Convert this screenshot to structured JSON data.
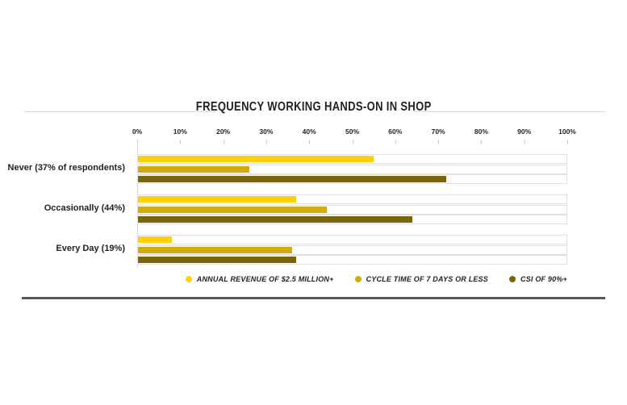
{
  "chart_data": {
    "type": "bar",
    "orientation": "horizontal",
    "title": "FREQUENCY WORKING HANDS-ON IN SHOP",
    "categories": [
      "Never (37% of respondents)",
      "Occasionally (44%)",
      "Every Day (19%)"
    ],
    "series": [
      {
        "name": "ANNUAL REVENUE OF $2.5 MILLION+",
        "color": "#FFD10A",
        "values": [
          55,
          37,
          8
        ]
      },
      {
        "name": "CYCLE TIME OF 7 DAYS OR LESS",
        "color": "#D2AC0D",
        "values": [
          26,
          44,
          36
        ]
      },
      {
        "name": "CSI OF 90%+",
        "color": "#7A6608",
        "values": [
          72,
          64,
          37
        ]
      }
    ],
    "x_ticks": [
      "0%",
      "10%",
      "20%",
      "30%",
      "40%",
      "50%",
      "60%",
      "70%",
      "80%",
      "90%",
      "100%"
    ],
    "xlim": [
      0,
      100
    ],
    "grid": "tick-marks-only",
    "legend_position": "bottom"
  }
}
